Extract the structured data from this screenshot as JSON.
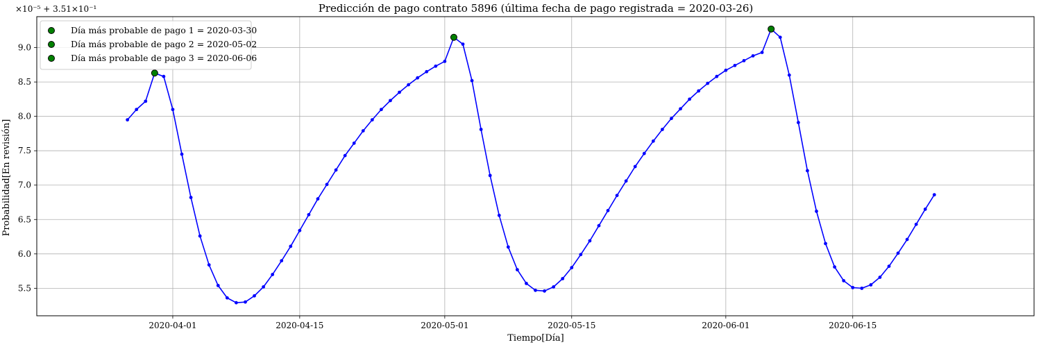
{
  "chart_data": {
    "type": "line",
    "title": "Predicción de pago contrato 5896 (última fecha de pago registrada = 2020-03-26)",
    "xlabel": "Tiempo[Día]",
    "ylabel": "Probabilidad[En revisión]",
    "offset_label": "×10⁻⁵ + 3.51×10⁻¹",
    "grid": true,
    "legend_position": "top-left",
    "x_ticks": [
      "2020-04-01",
      "2020-04-15",
      "2020-05-15",
      "2020-06-01",
      "2020-06-15"
    ],
    "x_tick_label_extra": "2020-05-01",
    "y_ticks": [
      "5.5",
      "6.0",
      "6.5",
      "7.0",
      "7.5",
      "8.0",
      "8.5",
      "9.0"
    ],
    "xlim": [
      "2020-03-17",
      "2020-07-05"
    ],
    "ylim": [
      5.1,
      9.45
    ],
    "line_color": "#0000ff",
    "highlight_color": "#008000",
    "series": [
      {
        "start_date": "2020-03-27",
        "values": [
          7.95,
          8.1,
          8.22,
          8.63,
          8.58,
          8.1,
          7.45,
          6.82,
          6.26,
          5.84,
          5.54,
          5.36,
          5.29,
          5.3,
          5.39,
          5.52,
          5.7,
          5.9,
          6.11,
          6.34,
          6.57,
          6.8,
          7.01,
          7.22,
          7.43,
          7.61,
          7.79,
          7.95,
          8.1,
          8.23,
          8.35,
          8.46,
          8.56,
          8.65,
          8.73,
          8.8,
          9.15,
          9.05,
          8.52,
          7.81,
          7.14,
          6.56,
          6.1,
          5.77,
          5.57,
          5.47,
          5.46,
          5.52,
          5.64,
          5.8,
          5.99,
          6.19,
          6.41,
          6.63,
          6.85,
          7.06,
          7.27,
          7.46,
          7.64,
          7.81,
          7.97,
          8.11,
          8.25,
          8.37,
          8.48,
          8.58,
          8.67,
          8.74,
          8.81,
          8.88,
          8.93,
          9.27,
          9.15,
          8.6,
          7.91,
          7.21,
          6.62,
          6.15,
          5.81,
          5.61,
          5.51,
          5.5,
          5.55,
          5.66,
          5.82,
          6.01,
          6.21,
          6.43,
          6.65,
          6.86
        ]
      }
    ],
    "highlights": [
      {
        "label": "Día más probable de pago 1 = 2020-03-30",
        "date": "2020-03-30",
        "value": 8.63
      },
      {
        "label": "Día más probable de pago 2 = 2020-05-02",
        "date": "2020-05-02",
        "value": 9.15
      },
      {
        "label": "Día más probable de pago 3 = 2020-06-06",
        "date": "2020-06-06",
        "value": 9.27
      }
    ]
  }
}
